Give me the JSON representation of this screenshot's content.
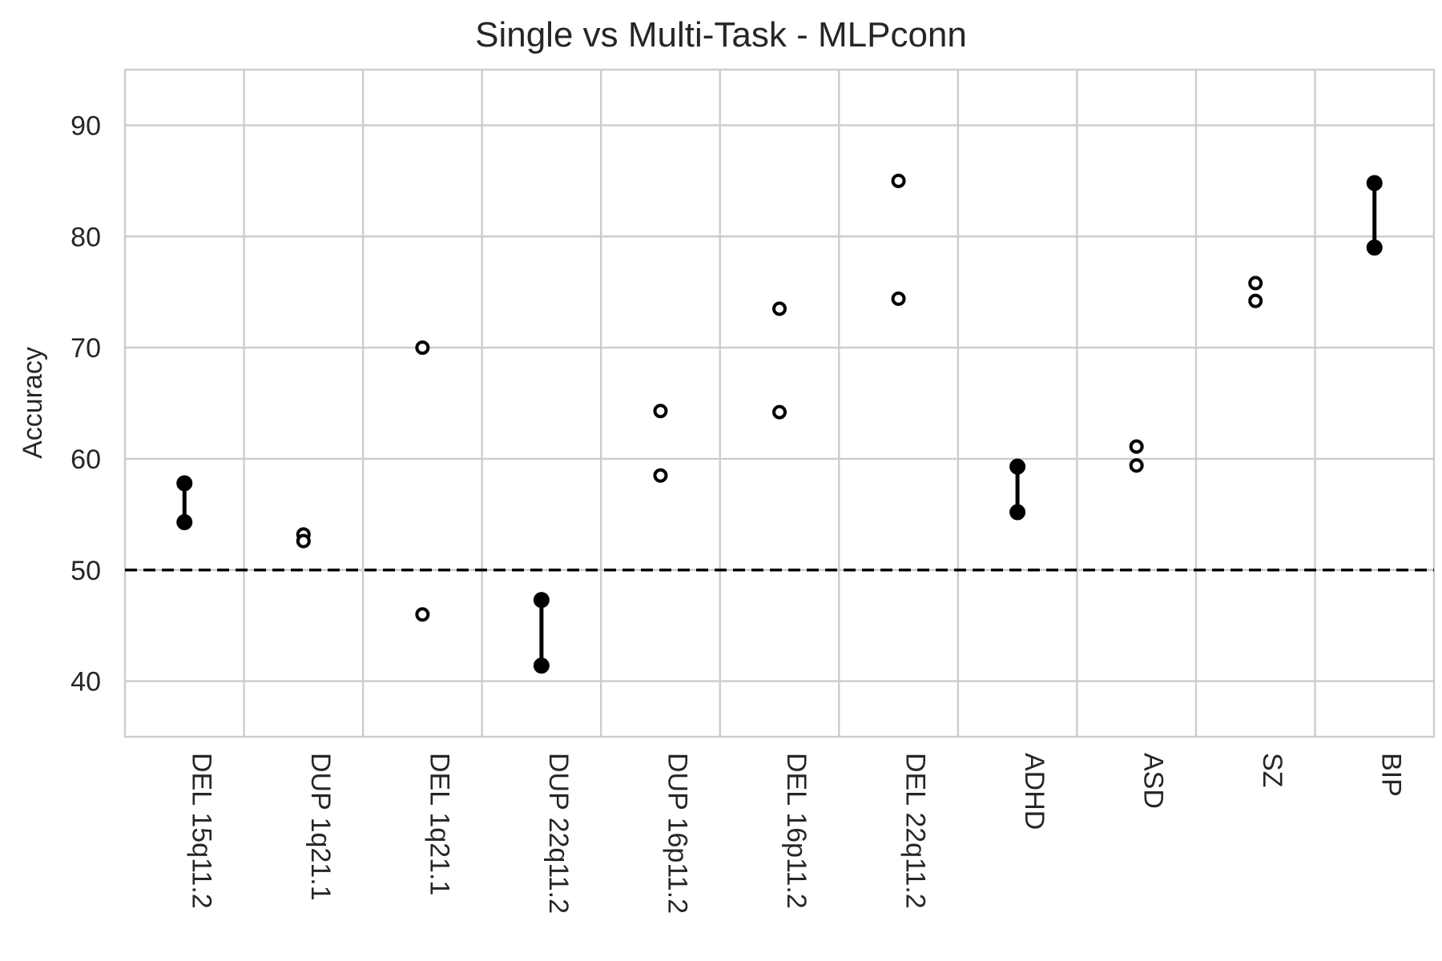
{
  "chart_data": {
    "type": "scatter",
    "title": "Single vs Multi-Task - MLPconn",
    "xlabel": "",
    "ylabel": "Accuracy",
    "ylim": [
      35,
      95
    ],
    "yticks": [
      40,
      50,
      60,
      70,
      80,
      90
    ],
    "grid": true,
    "legend": "none",
    "reference_line": {
      "y": 50,
      "style": "dashed"
    },
    "categories": [
      "DEL 15q11.2",
      "DUP 1q21.1",
      "DEL 1q21.1",
      "DUP 22q11.2",
      "DUP 16p11.2",
      "DEL 16p11.2",
      "DEL 22q11.2",
      "ADHD",
      "ASD",
      "SZ",
      "BIP"
    ],
    "pairs": [
      {
        "values": [
          57.8,
          54.3
        ],
        "significant": true
      },
      {
        "values": [
          53.2,
          52.6
        ],
        "significant": false
      },
      {
        "values": [
          70.0,
          46.0
        ],
        "significant": false
      },
      {
        "values": [
          47.3,
          41.4
        ],
        "significant": true
      },
      {
        "values": [
          64.3,
          58.5
        ],
        "significant": false
      },
      {
        "values": [
          73.5,
          64.2
        ],
        "significant": false
      },
      {
        "values": [
          85.0,
          74.4
        ],
        "significant": false
      },
      {
        "values": [
          59.3,
          55.2
        ],
        "significant": true
      },
      {
        "values": [
          61.1,
          59.4
        ],
        "significant": false
      },
      {
        "values": [
          75.8,
          74.2
        ],
        "significant": false
      },
      {
        "values": [
          84.8,
          79.0
        ],
        "significant": true
      }
    ],
    "colors": {
      "marker": "#000000",
      "grid": "#cccccc",
      "text": "#262626"
    }
  }
}
